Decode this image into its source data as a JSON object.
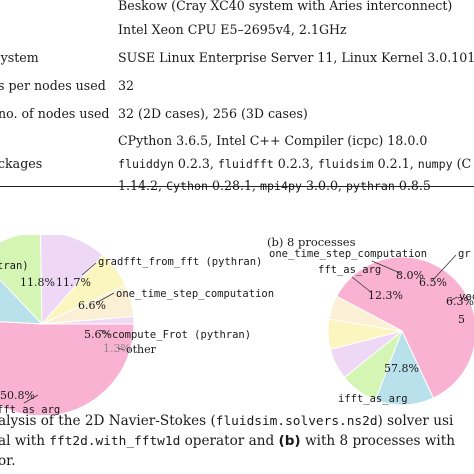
{
  "table": {
    "rows": [
      {
        "key": "",
        "value_parts": [
          {
            "text": "Beskow (Cray XC40 system with Aries interconnect)",
            "mono": false
          }
        ]
      },
      {
        "key": "",
        "value_parts": [
          {
            "text": "Intel Xeon CPU E5–2695v4, 2.1GHz",
            "mono": false
          }
        ]
      },
      {
        "key": "System",
        "value_parts": [
          {
            "text": "SUSE Linux Enterprise Server 11, Linux Kernel 3.0.101",
            "mono": false
          }
        ]
      },
      {
        "key": "s per nodes used",
        "value_parts": [
          {
            "text": "32",
            "mono": false
          }
        ]
      },
      {
        "key": "no. of nodes used",
        "value_parts": [
          {
            "text": "32 (2D cases), 256 (3D cases)",
            "mono": false
          }
        ]
      },
      {
        "key": "",
        "value_parts": [
          {
            "text": "CPython 3.6.5, Intel C++ Compiler (icpc) 18.0.0",
            "mono": false
          }
        ]
      },
      {
        "key": "ckages",
        "value_parts": [
          {
            "text": "fluiddyn",
            "mono": true
          },
          {
            "text": " 0.2.3, ",
            "mono": false
          },
          {
            "text": "fluidfft",
            "mono": true
          },
          {
            "text": " 0.2.3, ",
            "mono": false
          },
          {
            "text": "fluidsim",
            "mono": true
          },
          {
            "text": " 0.2.1, ",
            "mono": false
          },
          {
            "text": "numpy",
            "mono": true
          },
          {
            "text": " (C",
            "mono": false
          }
        ]
      },
      {
        "key": "",
        "value_parts": [
          {
            "text": "1.14.2, ",
            "mono": false
          },
          {
            "text": "Cython",
            "mono": true
          },
          {
            "text": " 0.28.1, ",
            "mono": false
          },
          {
            "text": "mpi4py",
            "mono": true
          },
          {
            "text": " 3.0.0, ",
            "mono": false
          },
          {
            "text": "pythran",
            "mono": true
          },
          {
            "text": " 0.8.5",
            "mono": false
          }
        ]
      }
    ]
  },
  "figure": {
    "panel_b_title": "(b) 8 processes",
    "colors": {
      "pink": "#f9b2d2",
      "blue": "#b9e1ec",
      "green": "#d4f5b4",
      "lavender": "#eed8f5",
      "yellow": "#fbf5bf",
      "cream": "#fbefd5"
    },
    "pie_a": {
      "labels": {
        "top_left_partial": "tran)",
        "gradfft": "gradfft_from_fft (pythran)",
        "one_time": "one_time_step_computation",
        "compute_frot": "compute_Frot (pythran)",
        "other": "other",
        "fft_as_arg": "fft_as_arg"
      }
    },
    "pie_b": {
      "labels": {
        "one_time": "one_time_step_computation",
        "fft_as_arg": "fft_as_arg",
        "ifft_as_arg": "ifft_as_arg",
        "gradfft_partial": "gr",
        "vec_partial": "vec"
      }
    }
  },
  "chart_data": [
    {
      "type": "pie",
      "title": "",
      "slices": [
        {
          "label": "ifft_as_arg",
          "value": 50.8,
          "label_text": "50.8%"
        },
        {
          "label": "",
          "value": 12.0,
          "label_text": ""
        },
        {
          "label": "",
          "value": 11.8,
          "label_text": "11.8%"
        },
        {
          "label": "gradfft_from_fft (pythran)",
          "value": 11.7,
          "label_text": "11.7%"
        },
        {
          "label": "one_time_step_computation",
          "value": 6.6,
          "label_text": "6.6%"
        },
        {
          "label": "compute_Frot (pythran)",
          "value": 5.6,
          "label_text": "5.6%"
        },
        {
          "label": "other",
          "value": 1.3,
          "label_text": "1.3%"
        }
      ]
    },
    {
      "type": "pie",
      "title": "(b) 8 processes",
      "slices": [
        {
          "label": "ifft_as_arg",
          "value": 57.8,
          "label_text": "57.8%"
        },
        {
          "label": "fft_as_arg",
          "value": 12.3,
          "label_text": "12.3%"
        },
        {
          "label": "one_time_step_computation",
          "value": 8.0,
          "label_text": "8.0%"
        },
        {
          "label": "",
          "value": 6.5,
          "label_text": "6.5%"
        },
        {
          "label": "",
          "value": 6.3,
          "label_text": "6.3%"
        },
        {
          "label": "",
          "value": 5.0,
          "label_text": "5"
        }
      ]
    }
  ],
  "caption": {
    "line1": [
      {
        "text": "alysis of the 2D Navier-Stokes (",
        "mono": false,
        "bold": false
      },
      {
        "text": "fluidsim.solvers.ns2d",
        "mono": true,
        "bold": false
      },
      {
        "text": ") solver usi",
        "mono": false,
        "bold": false
      }
    ],
    "line2": [
      {
        "text": "al with ",
        "mono": false,
        "bold": false
      },
      {
        "text": "fft2d.with_fftw1d",
        "mono": true,
        "bold": false
      },
      {
        "text": " operator and ",
        "mono": false,
        "bold": false
      },
      {
        "text": "(b)",
        "mono": false,
        "bold": true
      },
      {
        "text": " with 8 processes with",
        "mono": false,
        "bold": false
      }
    ],
    "line3": [
      {
        "text": "or.",
        "mono": false,
        "bold": false
      }
    ]
  }
}
